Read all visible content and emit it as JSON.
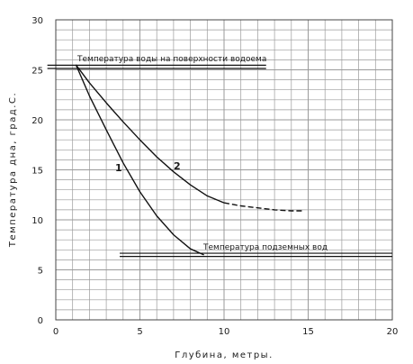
{
  "chart_data": {
    "type": "line",
    "xlabel": "Глубина, метры.",
    "ylabel": "Температура дна, град.С.",
    "xlim": [
      0,
      20
    ],
    "ylim": [
      0,
      30
    ],
    "x_ticks": [
      0,
      5,
      10,
      15,
      20
    ],
    "y_ticks": [
      0,
      5,
      10,
      15,
      20,
      25,
      30
    ],
    "grid": true,
    "series": [
      {
        "name": "1",
        "style": "solid",
        "x": [
          1.2,
          2,
          3,
          4,
          5,
          6,
          7,
          8,
          8.8
        ],
        "y": [
          25.5,
          22.4,
          19.0,
          15.7,
          12.8,
          10.4,
          8.5,
          7.1,
          6.5
        ]
      },
      {
        "name": "2",
        "style": "solid",
        "x": [
          1.2,
          2,
          3,
          4,
          5,
          6,
          7,
          8,
          9,
          10
        ],
        "y": [
          25.5,
          23.7,
          21.7,
          19.8,
          18.0,
          16.3,
          14.8,
          13.5,
          12.4,
          11.7
        ]
      },
      {
        "name": "2",
        "style": "dashed",
        "x": [
          10,
          11,
          12,
          13,
          14,
          14.7
        ],
        "y": [
          11.7,
          11.4,
          11.2,
          11.0,
          10.9,
          10.9
        ]
      }
    ],
    "reference_lines": [
      {
        "label": "Температура воды на поверхности водоема",
        "y": 25.3,
        "x_start": -0.5,
        "x_end": 12.5
      },
      {
        "label": "Температура подземных вод",
        "y": 6.5,
        "x_start": 3.8,
        "x_end": 20
      }
    ],
    "colors": {
      "grid": "#9a9a9a",
      "line": "#111111"
    }
  }
}
